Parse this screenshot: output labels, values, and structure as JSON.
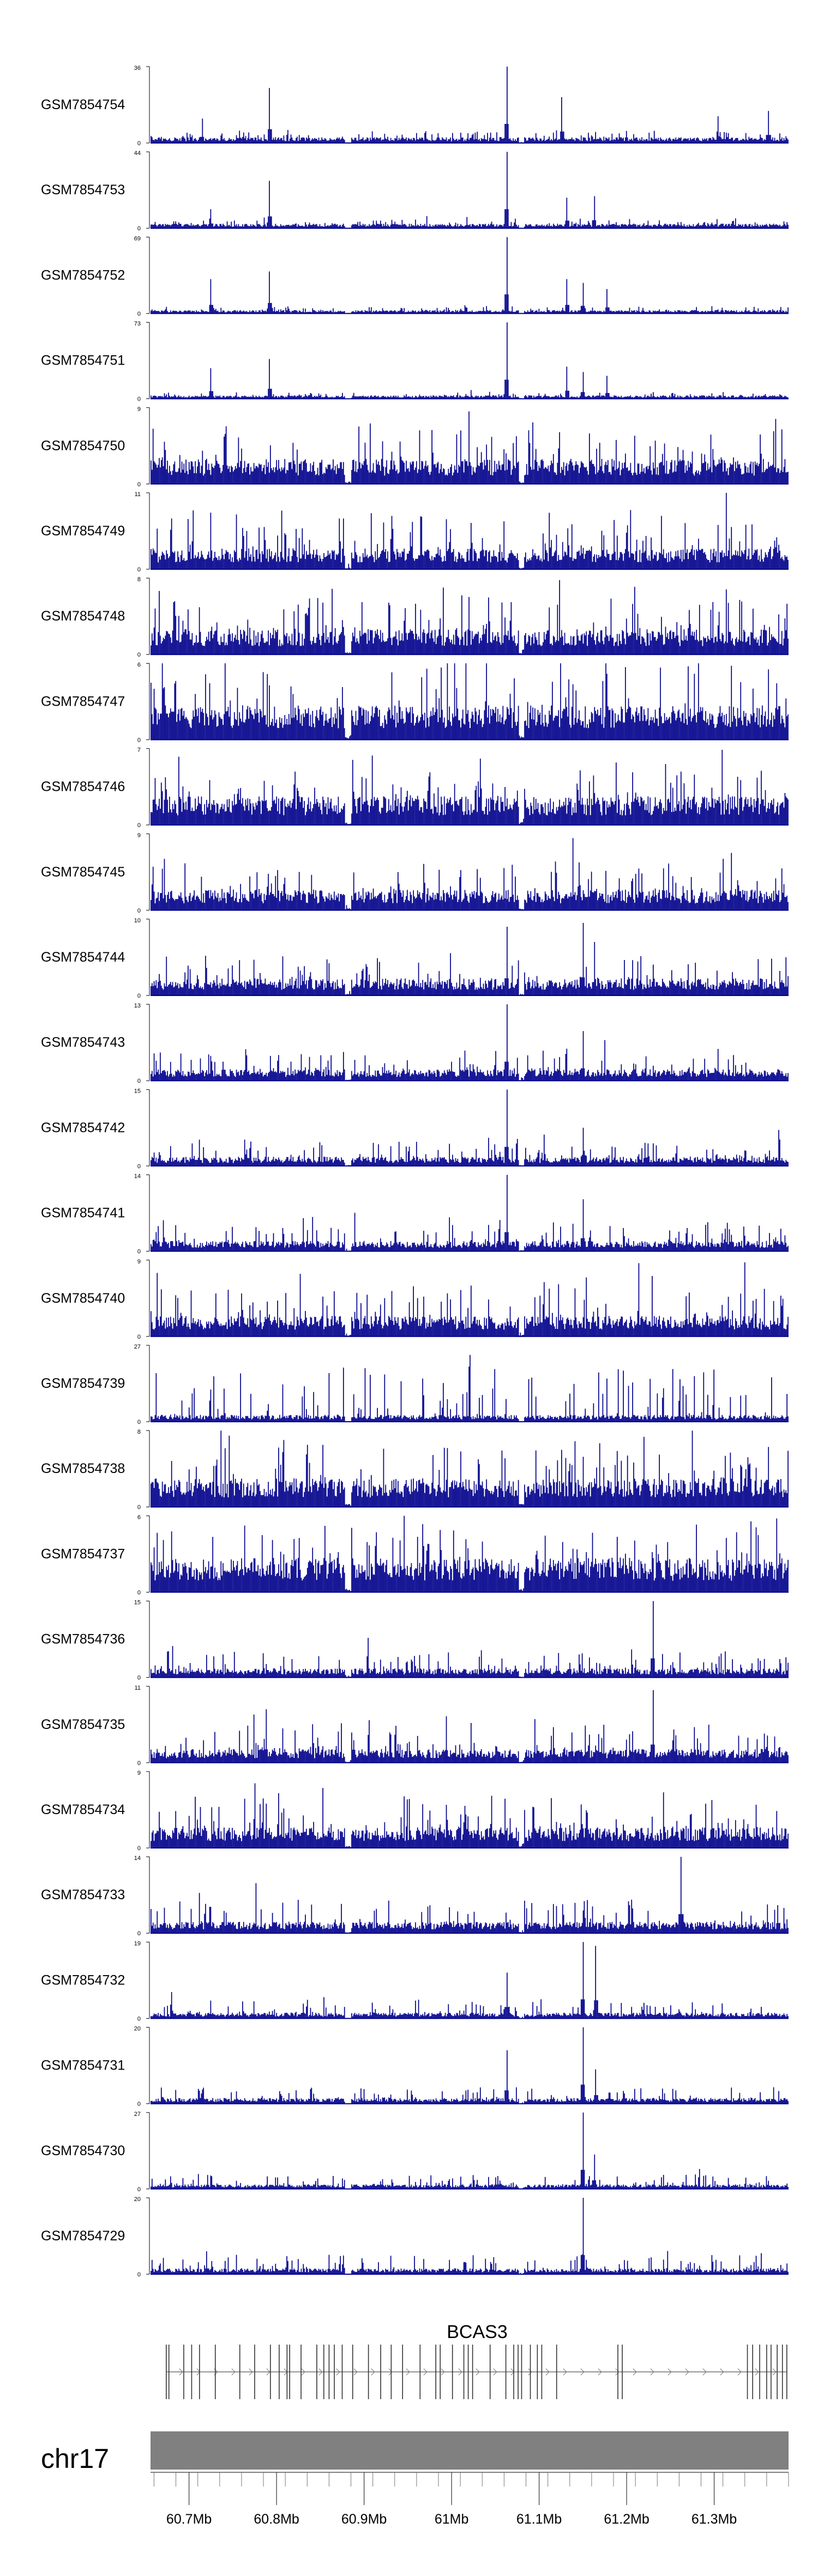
{
  "chart_data": {
    "type": "genome-coverage-tracks",
    "region_start_mb": 60.656,
    "region_end_mb": 61.385,
    "bar_color": "#00008b",
    "ymin": 0,
    "tracks": [
      {
        "name": "GSM7854754",
        "ymax": 36,
        "baseline": 0.05,
        "noise": 0.1,
        "peaks": [
          [
            60.792,
            0.72
          ],
          [
            61.063,
            1.0
          ],
          [
            61.126,
            0.6
          ],
          [
            61.305,
            0.35
          ],
          [
            61.362,
            0.42
          ],
          [
            60.715,
            0.32
          ]
        ]
      },
      {
        "name": "GSM7854753",
        "ymax": 44,
        "baseline": 0.04,
        "noise": 0.08,
        "peaks": [
          [
            60.792,
            0.62
          ],
          [
            61.063,
            1.0
          ],
          [
            61.132,
            0.4
          ],
          [
            61.163,
            0.42
          ],
          [
            60.725,
            0.25
          ]
        ]
      },
      {
        "name": "GSM7854752",
        "ymax": 69,
        "baseline": 0.03,
        "noise": 0.06,
        "peaks": [
          [
            60.725,
            0.45
          ],
          [
            60.792,
            0.55
          ],
          [
            61.063,
            1.0
          ],
          [
            61.132,
            0.45
          ],
          [
            61.15,
            0.4
          ],
          [
            61.178,
            0.32
          ]
        ]
      },
      {
        "name": "GSM7854751",
        "ymax": 73,
        "baseline": 0.03,
        "noise": 0.06,
        "peaks": [
          [
            60.725,
            0.4
          ],
          [
            60.792,
            0.52
          ],
          [
            61.063,
            1.0
          ],
          [
            61.132,
            0.42
          ],
          [
            61.15,
            0.35
          ],
          [
            61.178,
            0.3
          ]
        ]
      },
      {
        "name": "GSM7854750",
        "ymax": 9,
        "baseline": 0.22,
        "noise": 0.5,
        "peaks": [
          [
            61.02,
            0.95
          ],
          [
            61.01,
            0.7
          ]
        ]
      },
      {
        "name": "GSM7854749",
        "ymax": 11,
        "baseline": 0.18,
        "noise": 0.55,
        "peaks": []
      },
      {
        "name": "GSM7854748",
        "ymax": 8,
        "baseline": 0.22,
        "noise": 0.6,
        "peaks": []
      },
      {
        "name": "GSM7854747",
        "ymax": 6,
        "baseline": 0.3,
        "noise": 0.6,
        "peaks": []
      },
      {
        "name": "GSM7854746",
        "ymax": 7,
        "baseline": 0.25,
        "noise": 0.55,
        "peaks": []
      },
      {
        "name": "GSM7854745",
        "ymax": 9,
        "baseline": 0.18,
        "noise": 0.45,
        "peaks": [
          [
            61.32,
            0.75
          ]
        ]
      },
      {
        "name": "GSM7854744",
        "ymax": 10,
        "baseline": 0.15,
        "noise": 0.4,
        "peaks": [
          [
            61.063,
            0.9
          ],
          [
            61.15,
            0.95
          ],
          [
            61.163,
            0.7
          ]
        ]
      },
      {
        "name": "GSM7854743",
        "ymax": 13,
        "baseline": 0.1,
        "noise": 0.3,
        "peaks": [
          [
            61.063,
            1.0
          ],
          [
            61.15,
            0.65
          ]
        ]
      },
      {
        "name": "GSM7854742",
        "ymax": 15,
        "baseline": 0.08,
        "noise": 0.25,
        "peaks": [
          [
            61.063,
            1.0
          ],
          [
            61.15,
            0.5
          ]
        ]
      },
      {
        "name": "GSM7854741",
        "ymax": 14,
        "baseline": 0.09,
        "noise": 0.28,
        "peaks": [
          [
            61.063,
            1.0
          ],
          [
            61.15,
            0.68
          ]
        ]
      },
      {
        "name": "GSM7854740",
        "ymax": 9,
        "baseline": 0.18,
        "noise": 0.6,
        "peaks": []
      },
      {
        "name": "GSM7854739",
        "ymax": 27,
        "baseline": 0.06,
        "noise": 0.65,
        "peaks": []
      },
      {
        "name": "GSM7854738",
        "ymax": 8,
        "baseline": 0.25,
        "noise": 0.6,
        "peaks": []
      },
      {
        "name": "GSM7854737",
        "ymax": 6,
        "baseline": 0.3,
        "noise": 0.55,
        "peaks": []
      },
      {
        "name": "GSM7854736",
        "ymax": 15,
        "baseline": 0.08,
        "noise": 0.25,
        "peaks": [
          [
            61.23,
            1.0
          ]
        ]
      },
      {
        "name": "GSM7854735",
        "ymax": 11,
        "baseline": 0.12,
        "noise": 0.38,
        "peaks": [
          [
            61.23,
            0.95
          ],
          [
            60.788,
            0.7
          ]
        ]
      },
      {
        "name": "GSM7854734",
        "ymax": 9,
        "baseline": 0.18,
        "noise": 0.5,
        "peaks": []
      },
      {
        "name": "GSM7854733",
        "ymax": 14,
        "baseline": 0.1,
        "noise": 0.35,
        "peaks": [
          [
            61.262,
            1.0
          ]
        ]
      },
      {
        "name": "GSM7854732",
        "ymax": 19,
        "baseline": 0.05,
        "noise": 0.2,
        "peaks": [
          [
            61.15,
            1.0
          ],
          [
            61.165,
            0.95
          ],
          [
            61.063,
            0.6
          ]
        ]
      },
      {
        "name": "GSM7854731",
        "ymax": 20,
        "baseline": 0.05,
        "noise": 0.18,
        "peaks": [
          [
            61.15,
            1.0
          ],
          [
            61.063,
            0.7
          ],
          [
            61.165,
            0.45
          ]
        ]
      },
      {
        "name": "GSM7854730",
        "ymax": 27,
        "baseline": 0.04,
        "noise": 0.15,
        "peaks": [
          [
            61.15,
            1.0
          ],
          [
            61.163,
            0.45
          ]
        ]
      },
      {
        "name": "GSM7854729",
        "ymax": 20,
        "baseline": 0.05,
        "noise": 0.2,
        "peaks": [
          [
            61.15,
            1.0
          ],
          [
            60.72,
            0.3
          ]
        ]
      }
    ],
    "gene": {
      "name": "BCAS3",
      "strand": "+",
      "exons": [
        60.674,
        60.677,
        60.694,
        60.703,
        60.712,
        60.73,
        60.758,
        60.775,
        60.793,
        60.803,
        60.812,
        60.815,
        60.828,
        60.846,
        60.854,
        60.86,
        60.866,
        60.875,
        60.887,
        60.905,
        60.919,
        60.931,
        60.944,
        60.964,
        60.982,
        60.987,
        61.001,
        61.014,
        61.019,
        61.024,
        61.044,
        61.062,
        61.071,
        61.076,
        61.08,
        61.09,
        61.098,
        61.103,
        61.12,
        61.19,
        61.195,
        61.338,
        61.344,
        61.352,
        61.36,
        61.365,
        61.372,
        61.378,
        61.383
      ]
    },
    "chromosome": {
      "name": "chr17",
      "bar_color": "#808080",
      "tick_labels": [
        "60.7Mb",
        "60.8Mb",
        "60.9Mb",
        "61Mb",
        "61.1Mb",
        "61.2Mb",
        "61.3Mb"
      ],
      "tick_values": [
        60.7,
        60.8,
        60.9,
        61.0,
        61.1,
        61.2,
        61.3
      ],
      "minor_tick_step_mb": 0.025
    }
  }
}
